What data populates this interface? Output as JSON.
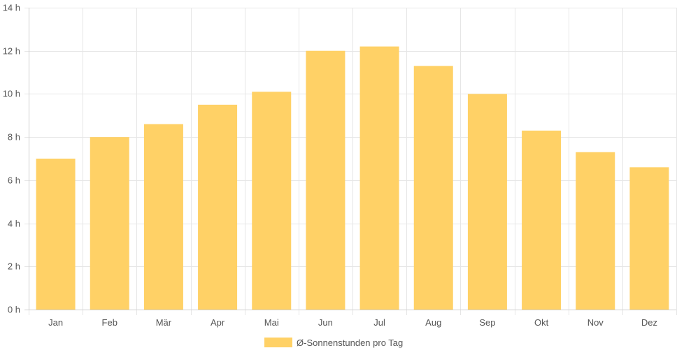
{
  "chart_data": {
    "type": "bar",
    "categories": [
      "Jan",
      "Feb",
      "Mär",
      "Apr",
      "Mai",
      "Jun",
      "Jul",
      "Aug",
      "Sep",
      "Okt",
      "Nov",
      "Dez"
    ],
    "series": [
      {
        "name": "Ø-Sonnenstunden pro Tag",
        "values": [
          7.0,
          8.0,
          8.6,
          9.5,
          10.1,
          12.0,
          12.2,
          11.3,
          10.0,
          8.3,
          7.3,
          6.6
        ],
        "color": "#ffd166"
      }
    ],
    "y_ticks": [
      "0 h",
      "2 h",
      "4 h",
      "6 h",
      "8 h",
      "10 h",
      "12 h",
      "14 h"
    ],
    "ylim": [
      0,
      14
    ],
    "grid": true,
    "legend_position": "bottom"
  }
}
